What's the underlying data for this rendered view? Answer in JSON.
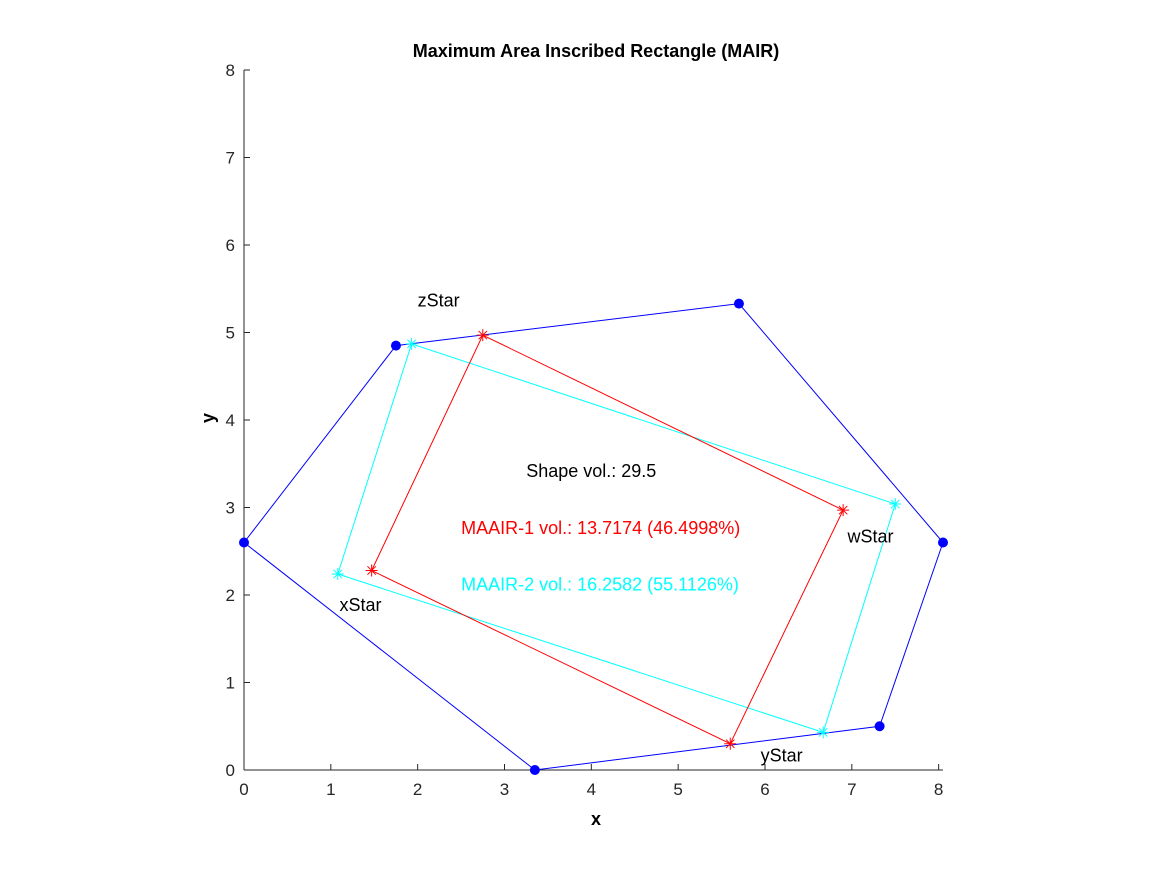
{
  "chart_data": {
    "type": "scatter",
    "title": "Maximum Area Inscribed Rectangle (MAIR)",
    "xlabel": "x",
    "ylabel": "y",
    "xlim": [
      0,
      8.05
    ],
    "ylim": [
      0,
      8
    ],
    "xticks": [
      0,
      1,
      2,
      3,
      4,
      5,
      6,
      7,
      8
    ],
    "yticks": [
      0,
      1,
      2,
      3,
      4,
      5,
      6,
      7,
      8
    ],
    "grid": false,
    "colors": {
      "shape": "#0000ff",
      "maair1": "#ff0000",
      "maair2": "#00ffff",
      "text": "#000000"
    },
    "shape": {
      "points": [
        [
          0,
          2.6
        ],
        [
          1.75,
          4.85
        ],
        [
          5.7,
          5.33
        ],
        [
          8.05,
          2.6
        ],
        [
          7.32,
          0.5
        ],
        [
          3.35,
          0.0
        ]
      ]
    },
    "rect1": {
      "points": [
        [
          1.47,
          2.28
        ],
        [
          2.75,
          4.97
        ],
        [
          6.9,
          2.97
        ],
        [
          5.6,
          0.3
        ]
      ]
    },
    "rect2": {
      "points": [
        [
          1.08,
          2.24
        ],
        [
          1.93,
          4.87
        ],
        [
          7.5,
          3.04
        ],
        [
          6.67,
          0.43
        ]
      ]
    },
    "annotations": [
      {
        "key": "zStar",
        "text": "zStar",
        "x": 2.0,
        "y": 5.3,
        "color": "#000000"
      },
      {
        "key": "wStar",
        "text": "wStar",
        "x": 6.95,
        "y": 2.6,
        "color": "#000000"
      },
      {
        "key": "xStar",
        "text": "xStar",
        "x": 1.1,
        "y": 1.82,
        "color": "#000000"
      },
      {
        "key": "yStar",
        "text": "yStar",
        "x": 5.95,
        "y": 0.1,
        "color": "#000000"
      },
      {
        "key": "shape_vol",
        "text": "Shape vol.: 29.5",
        "x": 3.25,
        "y": 3.35,
        "color": "#000000"
      },
      {
        "key": "maair1_vol",
        "text": "MAAIR-1 vol.: 13.7174 (46.4998%)",
        "x": 2.5,
        "y": 2.7,
        "color": "#ff0000"
      },
      {
        "key": "maair2_vol",
        "text": "MAAIR-2 vol.: 16.2582 (55.1126%)",
        "x": 2.5,
        "y": 2.05,
        "color": "#00ffff"
      }
    ]
  }
}
